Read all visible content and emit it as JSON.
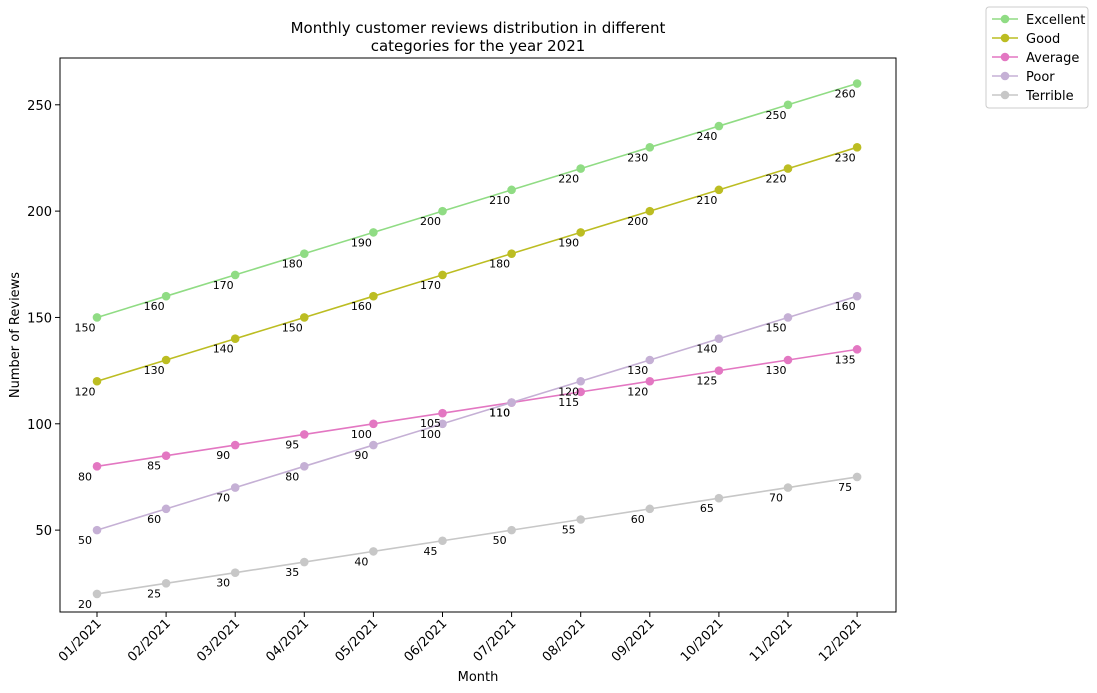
{
  "chart_data": {
    "type": "line",
    "title_lines": [
      "Monthly customer reviews distribution in different",
      "categories for the year 2021"
    ],
    "xlabel": "Month",
    "ylabel": "Number of Reviews",
    "categories": [
      "01/2021",
      "02/2021",
      "03/2021",
      "04/2021",
      "05/2021",
      "06/2021",
      "07/2021",
      "08/2021",
      "09/2021",
      "10/2021",
      "11/2021",
      "12/2021"
    ],
    "ylim": [
      11.5,
      272
    ],
    "yticks": [
      50,
      100,
      150,
      200,
      250
    ],
    "grid": false,
    "legend_position": "outside-top-right",
    "series": [
      {
        "name": "Excellent",
        "color": "#90dc84",
        "values": [
          150,
          160,
          170,
          180,
          190,
          200,
          210,
          220,
          230,
          240,
          250,
          260
        ]
      },
      {
        "name": "Good",
        "color": "#bcbd22",
        "values": [
          120,
          130,
          140,
          150,
          160,
          170,
          180,
          190,
          200,
          210,
          220,
          230
        ]
      },
      {
        "name": "Average",
        "color": "#e377c2",
        "values": [
          80,
          85,
          90,
          95,
          100,
          105,
          110,
          115,
          120,
          125,
          130,
          135
        ]
      },
      {
        "name": "Poor",
        "color": "#c5b0d5",
        "values": [
          50,
          60,
          70,
          80,
          90,
          100,
          110,
          120,
          130,
          140,
          150,
          160
        ]
      },
      {
        "name": "Terrible",
        "color": "#c7c7c7",
        "values": [
          20,
          25,
          30,
          35,
          40,
          45,
          50,
          55,
          60,
          65,
          70,
          75
        ]
      }
    ]
  }
}
